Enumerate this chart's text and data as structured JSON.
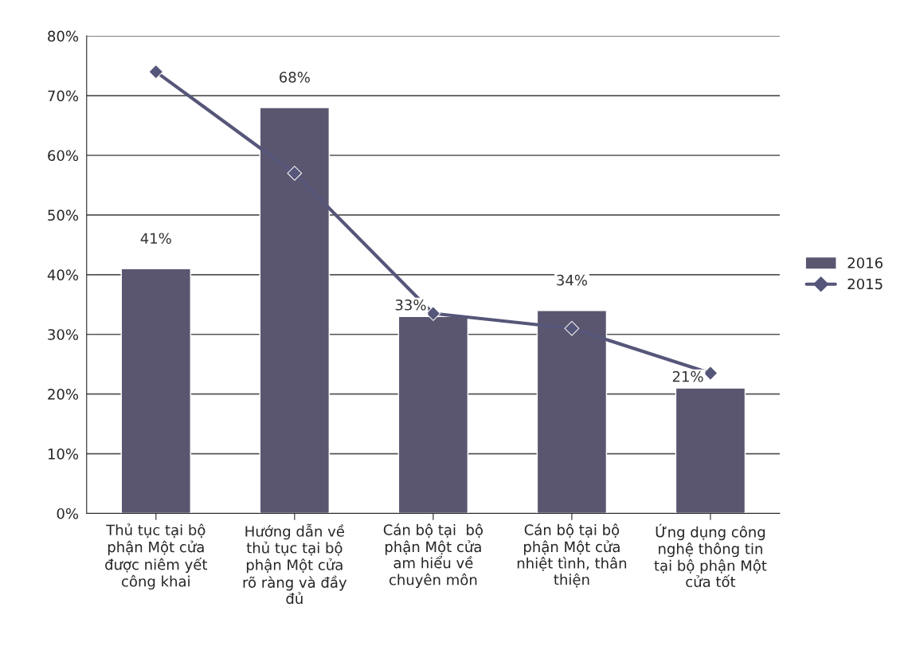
{
  "chart_data": {
    "type": "bar",
    "categories": [
      "Thủ tục tại bộ\nphận Một cửa\nđược niêm yết\ncông khai",
      "Hướng dẫn về\nthủ tục tại bộ\nphận Một cửa\nrõ ràng và đầy\nđủ",
      "Cán bộ tại  bộ\nphận Một cửa\nam hiểu về\nchuyên môn",
      "Cán bộ tại bộ\nphận Một cửa\nnhiệt tình, thân\nthiện",
      "Ứng dụng công\nnghệ thông tin\ntại bộ phận Một\ncửa tốt"
    ],
    "series": [
      {
        "name": "2016",
        "color": "#5b5670",
        "values": [
          41,
          68,
          33,
          34,
          21
        ],
        "value_labels": [
          "41%",
          "68%",
          "33%",
          "34%",
          "21%"
        ]
      },
      {
        "name": "2015",
        "type": "line",
        "color": "#56567a",
        "values": [
          74,
          57,
          33.5,
          31,
          23.5
        ],
        "marker": "diamond"
      }
    ],
    "ylim": [
      0,
      80
    ],
    "yticks": [
      {
        "value": 0,
        "label": "0%"
      },
      {
        "value": 10,
        "label": "10%"
      },
      {
        "value": 20,
        "label": "20%"
      },
      {
        "value": 30,
        "label": "30%"
      },
      {
        "value": 40,
        "label": "40%"
      },
      {
        "value": 50,
        "label": "50%"
      },
      {
        "value": 60,
        "label": "60%"
      },
      {
        "value": 70,
        "label": "70%"
      },
      {
        "value": 80,
        "label": "80%"
      }
    ],
    "grid": "y",
    "legend": "right"
  }
}
